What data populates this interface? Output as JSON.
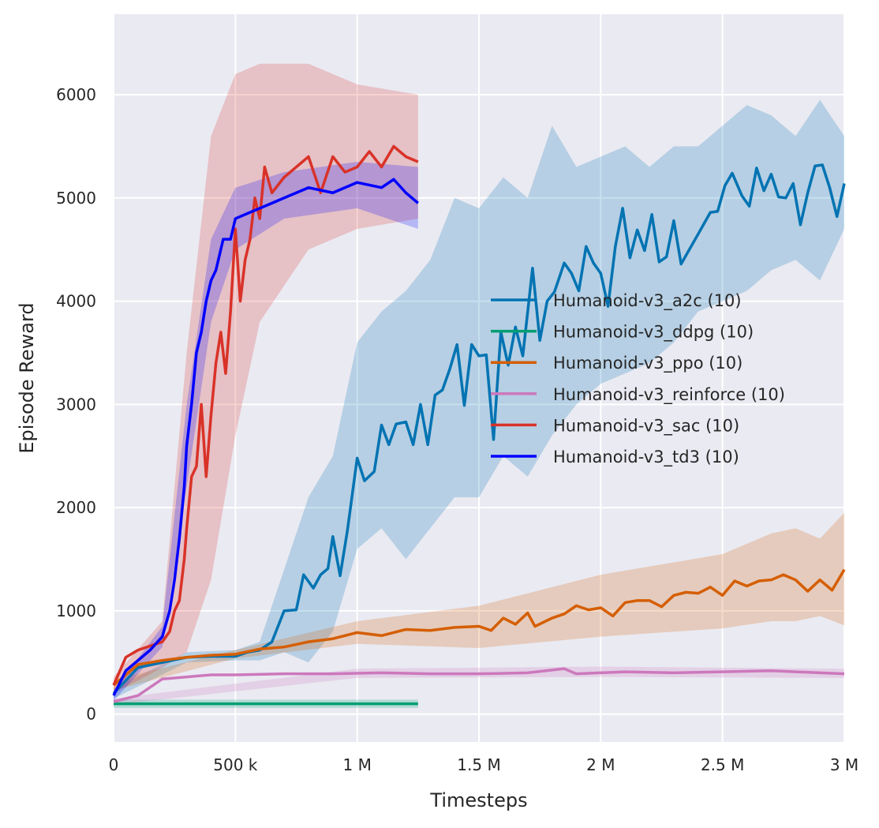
{
  "chart_data": {
    "type": "line",
    "title": "",
    "xlabel": "Timesteps",
    "ylabel": "Episode Reward",
    "xlim": [
      0,
      3000000
    ],
    "ylim": [
      -270,
      6780
    ],
    "grid": true,
    "legend_placement": "center-right",
    "x_ticks": [
      0,
      500000,
      1000000,
      1500000,
      2000000,
      2500000,
      3000000
    ],
    "x_tick_labels": [
      "0",
      "500 k",
      "1 M",
      "1.5 M",
      "2 M",
      "2.5 M",
      "3 M"
    ],
    "y_ticks": [
      0,
      1000,
      2000,
      3000,
      4000,
      5000,
      6000
    ],
    "y_tick_labels": [
      "0",
      "1000",
      "2000",
      "3000",
      "4000",
      "5000",
      "6000"
    ],
    "background": "#eaeaf2",
    "series": [
      {
        "name": "Humanoid-v3_a2c (10)",
        "color": "#0173b2",
        "x": [
          0,
          100000,
          200000,
          300000,
          400000,
          500000,
          550000,
          600000,
          650000,
          700000,
          750000,
          780000,
          820000,
          850000,
          880000,
          900000,
          930000,
          960000,
          1000000,
          1030000,
          1070000,
          1100000,
          1130000,
          1160000,
          1200000,
          1230000,
          1260000,
          1290000,
          1320000,
          1350000,
          1380000,
          1410000,
          1440000,
          1470000,
          1500000,
          1530000,
          1560000,
          1590000,
          1620000,
          1650000,
          1680000,
          1720000,
          1750000,
          1780000,
          1810000,
          1850000,
          1880000,
          1910000,
          1940000,
          1970000,
          2000000,
          2030000,
          2060000,
          2090000,
          2120000,
          2150000,
          2180000,
          2210000,
          2240000,
          2270000,
          2300000,
          2330000,
          2400000,
          2450000,
          2480000,
          2510000,
          2540000,
          2580000,
          2610000,
          2640000,
          2670000,
          2700000,
          2730000,
          2760000,
          2790000,
          2820000,
          2850000,
          2880000,
          2910000,
          2940000,
          2970000,
          3000000
        ],
        "y": [
          200,
          450,
          500,
          550,
          560,
          560,
          600,
          620,
          700,
          1000,
          1010,
          1350,
          1220,
          1350,
          1410,
          1720,
          1340,
          1780,
          2480,
          2260,
          2350,
          2800,
          2610,
          2810,
          2830,
          2610,
          3000,
          2610,
          3090,
          3140,
          3340,
          3580,
          2990,
          3580,
          3470,
          3480,
          2660,
          3700,
          3380,
          3750,
          3470,
          4320,
          3620,
          4000,
          4090,
          4370,
          4270,
          4100,
          4530,
          4370,
          4270,
          3950,
          4530,
          4900,
          4420,
          4690,
          4490,
          4840,
          4380,
          4430,
          4780,
          4360,
          4650,
          4860,
          4870,
          5120,
          5240,
          5020,
          4920,
          5290,
          5070,
          5230,
          5010,
          5000,
          5140,
          4740,
          5050,
          5310,
          5320,
          5100,
          4820,
          5140
        ],
        "band": {
          "x": [
            0,
            300000,
            500000,
            600000,
            700000,
            800000,
            900000,
            1000000,
            1100000,
            1200000,
            1300000,
            1400000,
            1500000,
            1600000,
            1700000,
            1800000,
            1900000,
            2000000,
            2100000,
            2200000,
            2300000,
            2400000,
            2500000,
            2600000,
            2700000,
            2800000,
            2900000,
            3000000
          ],
          "lower": [
            150,
            500,
            520,
            520,
            600,
            500,
            800,
            1600,
            1800,
            1500,
            1800,
            2100,
            2100,
            2500,
            2300,
            2700,
            3000,
            3200,
            3300,
            3400,
            3600,
            3900,
            4000,
            4100,
            4300,
            4400,
            4200,
            4700
          ],
          "upper": [
            250,
            600,
            620,
            700,
            1400,
            2100,
            2500,
            3600,
            3900,
            4100,
            4400,
            5000,
            4900,
            5200,
            5000,
            5700,
            5300,
            5400,
            5500,
            5300,
            5500,
            5500,
            5700,
            5900,
            5800,
            5600,
            5950,
            5600
          ]
        }
      },
      {
        "name": "Humanoid-v3_ddpg (10)",
        "color": "#029e73",
        "x": [
          0,
          250000,
          500000,
          750000,
          1000000,
          1250000
        ],
        "y": [
          100,
          100,
          100,
          100,
          100,
          100
        ],
        "band": {
          "x": [
            0,
            1250000
          ],
          "lower": [
            60,
            60
          ],
          "upper": [
            140,
            140
          ]
        }
      },
      {
        "name": "Humanoid-v3_ppo (10)",
        "color": "#d55e00",
        "x": [
          0,
          100000,
          200000,
          300000,
          400000,
          500000,
          600000,
          700000,
          800000,
          900000,
          1000000,
          1100000,
          1200000,
          1300000,
          1400000,
          1500000,
          1550000,
          1600000,
          1650000,
          1700000,
          1730000,
          1800000,
          1850000,
          1900000,
          1950000,
          2000000,
          2050000,
          2100000,
          2150000,
          2200000,
          2250000,
          2300000,
          2350000,
          2400000,
          2450000,
          2500000,
          2550000,
          2600000,
          2650000,
          2700000,
          2750000,
          2800000,
          2850000,
          2900000,
          2950000,
          3000000
        ],
        "y": [
          280,
          480,
          520,
          550,
          570,
          580,
          630,
          650,
          700,
          730,
          790,
          760,
          820,
          810,
          840,
          850,
          810,
          930,
          870,
          980,
          850,
          930,
          970,
          1050,
          1010,
          1030,
          950,
          1080,
          1100,
          1100,
          1040,
          1150,
          1180,
          1170,
          1230,
          1150,
          1290,
          1240,
          1290,
          1300,
          1350,
          1300,
          1190,
          1300,
          1200,
          1400
        ],
        "band": {
          "x": [
            0,
            500000,
            1000000,
            1500000,
            2000000,
            2500000,
            2700000,
            2800000,
            2900000,
            3000000
          ],
          "lower": [
            230,
            540,
            680,
            640,
            750,
            830,
            900,
            900,
            950,
            860
          ],
          "upper": [
            330,
            620,
            900,
            1050,
            1350,
            1550,
            1750,
            1800,
            1700,
            1950
          ]
        }
      },
      {
        "name": "Humanoid-v3_reinforce (10)",
        "color": "#cc78bc",
        "x": [
          0,
          100000,
          200000,
          300000,
          400000,
          500000,
          700000,
          900000,
          1100000,
          1300000,
          1500000,
          1700000,
          1850000,
          1900000,
          2100000,
          2300000,
          2500000,
          2700000,
          2900000,
          3000000
        ],
        "y": [
          120,
          180,
          340,
          360,
          380,
          380,
          390,
          390,
          400,
          390,
          390,
          400,
          440,
          390,
          410,
          400,
          410,
          420,
          400,
          390
        ],
        "band": {
          "x": [
            0,
            1000000,
            2000000,
            3000000
          ],
          "lower": [
            90,
            350,
            360,
            350
          ],
          "upper": [
            150,
            440,
            460,
            440
          ]
        }
      },
      {
        "name": "Humanoid-v3_sac (10)",
        "color": "#d93228",
        "x": [
          0,
          50000,
          100000,
          150000,
          200000,
          230000,
          250000,
          270000,
          290000,
          300000,
          320000,
          340000,
          360000,
          380000,
          400000,
          420000,
          440000,
          460000,
          480000,
          500000,
          520000,
          540000,
          560000,
          580000,
          600000,
          620000,
          650000,
          700000,
          750000,
          800000,
          850000,
          900000,
          950000,
          1000000,
          1050000,
          1100000,
          1150000,
          1200000,
          1250000
        ],
        "y": [
          280,
          550,
          620,
          660,
          700,
          800,
          1000,
          1100,
          1500,
          1800,
          2300,
          2400,
          3000,
          2300,
          2900,
          3400,
          3700,
          3300,
          3900,
          4700,
          4000,
          4400,
          4600,
          5000,
          4800,
          5300,
          5050,
          5200,
          5300,
          5400,
          5050,
          5400,
          5250,
          5300,
          5450,
          5300,
          5500,
          5400,
          5350
        ],
        "band": {
          "x": [
            0,
            200000,
            300000,
            400000,
            500000,
            600000,
            800000,
            1000000,
            1250000
          ],
          "lower": [
            200,
            450,
            600,
            1300,
            2700,
            3800,
            4500,
            4700,
            4800
          ],
          "upper": [
            360,
            900,
            3500,
            5600,
            6200,
            6300,
            6300,
            6100,
            6000
          ]
        }
      },
      {
        "name": "Humanoid-v3_td3 (10)",
        "color": "#0000ff",
        "x": [
          0,
          50000,
          100000,
          150000,
          200000,
          230000,
          250000,
          270000,
          290000,
          300000,
          320000,
          340000,
          360000,
          380000,
          400000,
          420000,
          450000,
          480000,
          500000,
          550000,
          600000,
          650000,
          700000,
          750000,
          800000,
          900000,
          1000000,
          1100000,
          1150000,
          1200000,
          1250000
        ],
        "y": [
          180,
          420,
          520,
          620,
          750,
          1000,
          1300,
          1700,
          2200,
          2600,
          3000,
          3500,
          3700,
          4000,
          4200,
          4300,
          4600,
          4600,
          4800,
          4850,
          4900,
          4950,
          5000,
          5050,
          5100,
          5050,
          5150,
          5100,
          5180,
          5050,
          4950
        ],
        "band": {
          "x": [
            0,
            200000,
            300000,
            400000,
            500000,
            700000,
            1000000,
            1250000
          ],
          "lower": [
            130,
            650,
            2200,
            3800,
            4500,
            4800,
            4900,
            4700
          ],
          "upper": [
            230,
            850,
            3000,
            4600,
            5100,
            5250,
            5350,
            5300
          ]
        }
      }
    ]
  }
}
